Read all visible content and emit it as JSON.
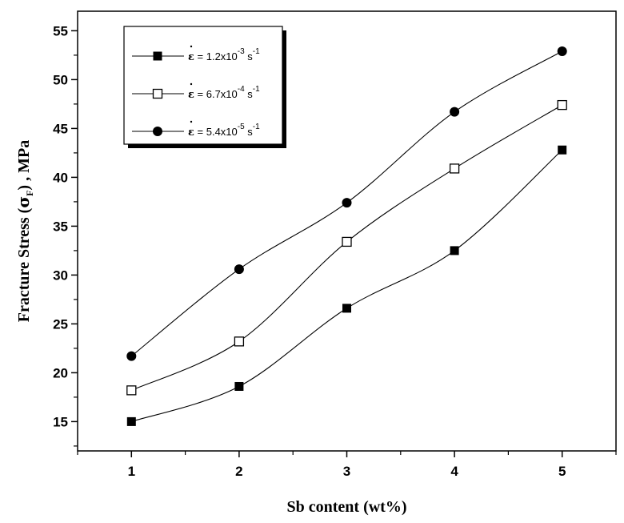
{
  "chart_data": {
    "type": "line",
    "xlabel": "Sb content (wt%)",
    "ylabel": {
      "prefix": "Fracture Stress (",
      "symbol": "σ",
      "subscript": "F",
      "suffix": ") , MPa"
    },
    "xlim": [
      0.5,
      5.5
    ],
    "ylim": [
      12,
      57
    ],
    "x_ticks": [
      1,
      2,
      3,
      4,
      5
    ],
    "x_tick_labels": [
      "1",
      "2",
      "3",
      "4",
      "5"
    ],
    "y_ticks": [
      15,
      20,
      25,
      30,
      35,
      40,
      45,
      50,
      55
    ],
    "y_tick_labels": [
      "15",
      "20",
      "25",
      "30",
      "35",
      "40",
      "45",
      "50",
      "55"
    ],
    "grid": false,
    "legend_position": "top-left",
    "x": [
      1,
      2,
      3,
      4,
      5
    ],
    "series": [
      {
        "name": "ε̇ = 1.2x10-3 s-1",
        "legend": {
          "symbol": "ε",
          "eq": " = 1.2x10",
          "exp": "-3",
          "unit": "s",
          "unit_exp": "-1"
        },
        "marker": "filled-square",
        "values": [
          15.0,
          18.6,
          26.6,
          32.5,
          42.8
        ]
      },
      {
        "name": "ε̇ = 6.7x10-4 s-1",
        "legend": {
          "symbol": "ε",
          "eq": " = 6.7x10",
          "exp": "-4",
          "unit": "s",
          "unit_exp": "-1"
        },
        "marker": "open-square",
        "values": [
          18.2,
          23.2,
          33.4,
          40.9,
          47.4
        ]
      },
      {
        "name": "ε̇ = 5.4x10-5 s-1",
        "legend": {
          "symbol": "ε",
          "eq": " = 5.4x10",
          "exp": "-5",
          "unit": "s",
          "unit_exp": "-1"
        },
        "marker": "filled-circle",
        "values": [
          21.7,
          30.6,
          37.4,
          46.7,
          52.9
        ]
      }
    ],
    "colors": {
      "line": "#000000",
      "marker": "#000000",
      "background": "#ffffff"
    }
  }
}
